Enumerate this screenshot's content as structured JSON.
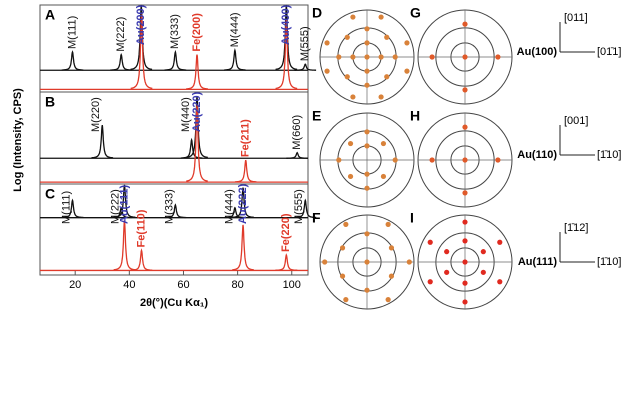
{
  "chart_data": [
    {
      "type": "xrd",
      "label": "A",
      "xlim": [
        7,
        106
      ],
      "ylim": [
        0,
        10
      ],
      "ylabel": "Log (Intensity, CPS)",
      "series": [
        {
          "color": "#111111",
          "baseline": 2.5,
          "x": [
            19,
            37,
            44.4,
            57,
            79,
            98,
            105
          ],
          "values": [
            4.6,
            4.3,
            10,
            4.6,
            4.8,
            10,
            3.2
          ]
        },
        {
          "color": "#e03a2a",
          "baseline": 0.3,
          "x": [
            44.5,
            65,
            98
          ],
          "values": [
            8.9,
            4.3,
            8.3
          ]
        }
      ],
      "annotations": [
        {
          "text": "M(111)",
          "x": 19,
          "color": "#111111"
        },
        {
          "text": "M(222)",
          "x": 37,
          "color": "#111111"
        },
        {
          "text": "Au(200)",
          "x": 44.4,
          "color": "#3a3ab0"
        },
        {
          "text": "M(333)",
          "x": 57,
          "color": "#111111"
        },
        {
          "text": "M(444)",
          "x": 79,
          "color": "#111111"
        },
        {
          "text": "Au(400)",
          "x": 98,
          "color": "#3a3ab0"
        },
        {
          "text": "M(555)",
          "x": 105,
          "color": "#111111"
        },
        {
          "text": "Fe(200)",
          "x": 65,
          "color": "#e03a2a"
        }
      ]
    },
    {
      "type": "xrd",
      "label": "B",
      "xlim": [
        7,
        106
      ],
      "ylim": [
        0,
        10
      ],
      "series": [
        {
          "color": "#111111",
          "baseline": 2.8,
          "x": [
            30,
            63,
            65,
            102
          ],
          "values": [
            6.4,
            4.8,
            9.5,
            3.4
          ]
        },
        {
          "color": "#e03a2a",
          "baseline": 0.2,
          "x": [
            65,
            83
          ],
          "values": [
            8.6,
            2.6
          ]
        }
      ],
      "annotations": [
        {
          "text": "M(220)",
          "x": 30,
          "color": "#111111"
        },
        {
          "text": "M(440)",
          "x": 61,
          "color": "#111111"
        },
        {
          "text": "Au(220)",
          "x": 65,
          "color": "#3a3ab0"
        },
        {
          "text": "M(660)",
          "x": 102,
          "color": "#111111"
        },
        {
          "text": "Fe(211)",
          "x": 83,
          "color": "#e03a2a"
        }
      ]
    },
    {
      "type": "xrd",
      "label": "C",
      "xlim": [
        7,
        106
      ],
      "ylim": [
        0,
        10
      ],
      "xlabel": "2θ(°)(Cu Kα₁)",
      "xticks": [
        20,
        40,
        60,
        80,
        100
      ],
      "series": [
        {
          "color": "#111111",
          "baseline": 6.3,
          "x": [
            19,
            37,
            38.2,
            57,
            79,
            82,
            105
          ],
          "values": [
            8.2,
            7.4,
            9.9,
            7.7,
            7.4,
            9.6,
            8.2
          ]
        },
        {
          "color": "#e03a2a",
          "baseline": 0.5,
          "x": [
            38.2,
            44.5,
            82,
            98
          ],
          "values": [
            6.0,
            2.7,
            5.5,
            2.2
          ]
        }
      ],
      "annotations": [
        {
          "text": "M(111)",
          "x": 19,
          "color": "#111111"
        },
        {
          "text": "M(222)",
          "x": 35,
          "color": "#111111"
        },
        {
          "text": "Au(111)",
          "x": 38.2,
          "color": "#3a3ab0"
        },
        {
          "text": "M(333)",
          "x": 57,
          "color": "#111111"
        },
        {
          "text": "M(444)",
          "x": 77,
          "color": "#111111"
        },
        {
          "text": "Au(222)",
          "x": 82,
          "color": "#3a3ab0"
        },
        {
          "text": "M(555)",
          "x": 105,
          "color": "#111111"
        },
        {
          "text": "Fe(110)",
          "x": 44.5,
          "color": "#e03a2a"
        },
        {
          "text": "Fe(220)",
          "x": 98,
          "color": "#e03a2a"
        }
      ]
    },
    {
      "type": "pole",
      "label": "D",
      "xlim": [
        -1,
        1
      ],
      "ylim": [
        -1,
        1
      ],
      "series": [
        {
          "color": "#d9823a",
          "x": [
            0,
            0.42,
            0.6,
            0.42,
            0,
            -0.42,
            -0.6,
            -0.42,
            0.3,
            -0.3,
            0.85,
            0.85,
            0.3,
            -0.3,
            -0.85,
            -0.85,
            0,
            0.3,
            0,
            -0.3,
            0
          ],
          "values": [
            0.6,
            0.42,
            0,
            -0.42,
            -0.6,
            -0.42,
            0,
            0.42,
            0.85,
            0.85,
            0.3,
            -0.3,
            -0.85,
            -0.85,
            -0.3,
            0.3,
            0.3,
            0,
            -0.3,
            0,
            0
          ]
        }
      ]
    },
    {
      "type": "pole",
      "label": "G",
      "xlim": [
        -1,
        1
      ],
      "ylim": [
        -1,
        1
      ],
      "series": [
        {
          "color": "#e05a2a",
          "x": [
            0,
            0,
            0.7,
            0,
            -0.7
          ],
          "values": [
            0,
            0.7,
            0,
            -0.7,
            0
          ]
        }
      ]
    },
    {
      "type": "pole",
      "label": "E",
      "xlim": [
        -1,
        1
      ],
      "ylim": [
        -1,
        1
      ],
      "series": [
        {
          "color": "#d9823a",
          "x": [
            0,
            0.6,
            0,
            -0.6,
            0.35,
            -0.35,
            0.35,
            -0.35,
            0,
            0
          ],
          "values": [
            0.6,
            0,
            -0.6,
            0,
            0.35,
            0.35,
            -0.35,
            -0.35,
            0.3,
            -0.3
          ]
        }
      ]
    },
    {
      "type": "pole",
      "label": "H",
      "xlim": [
        -1,
        1
      ],
      "ylim": [
        -1,
        1
      ],
      "series": [
        {
          "color": "#e05a2a",
          "x": [
            0,
            0.7,
            -0.7,
            0,
            0
          ],
          "values": [
            0,
            0,
            0,
            0.7,
            -0.7
          ]
        }
      ]
    },
    {
      "type": "pole",
      "label": "F",
      "xlim": [
        -1,
        1
      ],
      "ylim": [
        -1,
        1
      ],
      "series": [
        {
          "color": "#d9823a",
          "x": [
            0,
            0,
            0.52,
            -0.52,
            0,
            0.52,
            -0.52,
            0.45,
            -0.45,
            0.9,
            -0.9,
            0.45,
            -0.45
          ],
          "values": [
            0,
            0.6,
            -0.3,
            -0.3,
            -0.6,
            0.3,
            0.3,
            0.8,
            0.8,
            0,
            0,
            -0.8,
            -0.8
          ]
        }
      ]
    },
    {
      "type": "pole",
      "label": "I",
      "xlim": [
        -1,
        1
      ],
      "ylim": [
        -1,
        1
      ],
      "series": [
        {
          "color": "#e02a20",
          "x": [
            0,
            0,
            0.39,
            0.39,
            0,
            -0.39,
            -0.39,
            0,
            0.74,
            0.74,
            0,
            -0.74,
            -0.74
          ],
          "values": [
            0,
            0.45,
            0.22,
            -0.22,
            -0.45,
            -0.22,
            0.22,
            0.85,
            0.42,
            -0.42,
            -0.85,
            -0.42,
            0.42
          ]
        }
      ]
    }
  ],
  "orientations": [
    {
      "top": "[011]",
      "sample": "Au(100)",
      "right": "[01̄1]"
    },
    {
      "top": "[001]",
      "sample": "Au(110)",
      "right": "[1̄10]"
    },
    {
      "top": "[1̄12]",
      "sample": "Au(111)",
      "right": "[1̄10]"
    }
  ]
}
